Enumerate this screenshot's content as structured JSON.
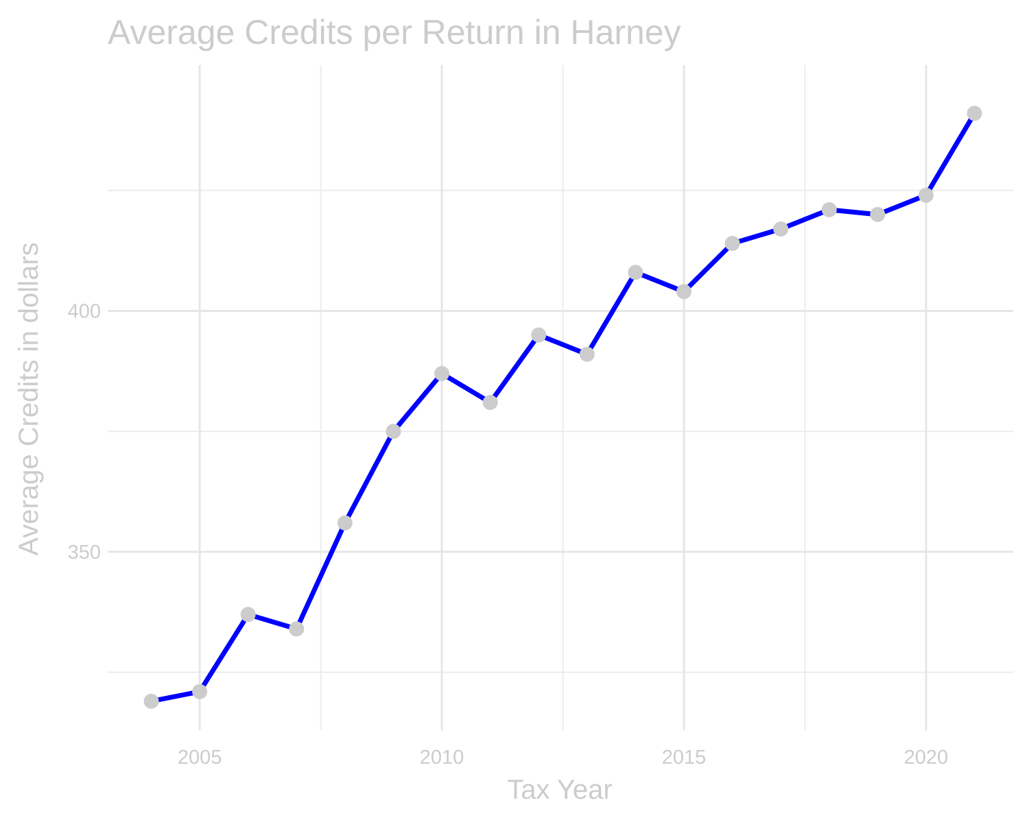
{
  "chart_data": {
    "type": "line",
    "title": "Average Credits per Return in Harney",
    "xlabel": "Tax Year",
    "ylabel": "Average Credits in dollars",
    "x": [
      2004,
      2005,
      2006,
      2007,
      2008,
      2009,
      2010,
      2011,
      2012,
      2013,
      2014,
      2015,
      2016,
      2017,
      2018,
      2019,
      2020,
      2021
    ],
    "series": [
      {
        "values": [
          319,
          321,
          337,
          334,
          356,
          375,
          387,
          381,
          395,
          391,
          408,
          404,
          414,
          417,
          421,
          420,
          424,
          441
        ]
      }
    ],
    "xlim": [
      2003.1,
      2021.8
    ],
    "ylim": [
      313,
      451
    ],
    "x_ticks": [
      2005,
      2010,
      2015,
      2020
    ],
    "x_tick_labels": [
      "2005",
      "2010",
      "2015",
      "2020"
    ],
    "y_ticks": [
      350,
      400
    ],
    "y_tick_labels": [
      "350",
      "400"
    ],
    "x_minor_ticks": [
      2007.5,
      2012.5,
      2017.5
    ],
    "y_minor_ticks": [
      325,
      375,
      425
    ],
    "grid": true,
    "line_color": "#0000ff",
    "point_color": "#cccccc",
    "text_color": "#cccccc"
  }
}
